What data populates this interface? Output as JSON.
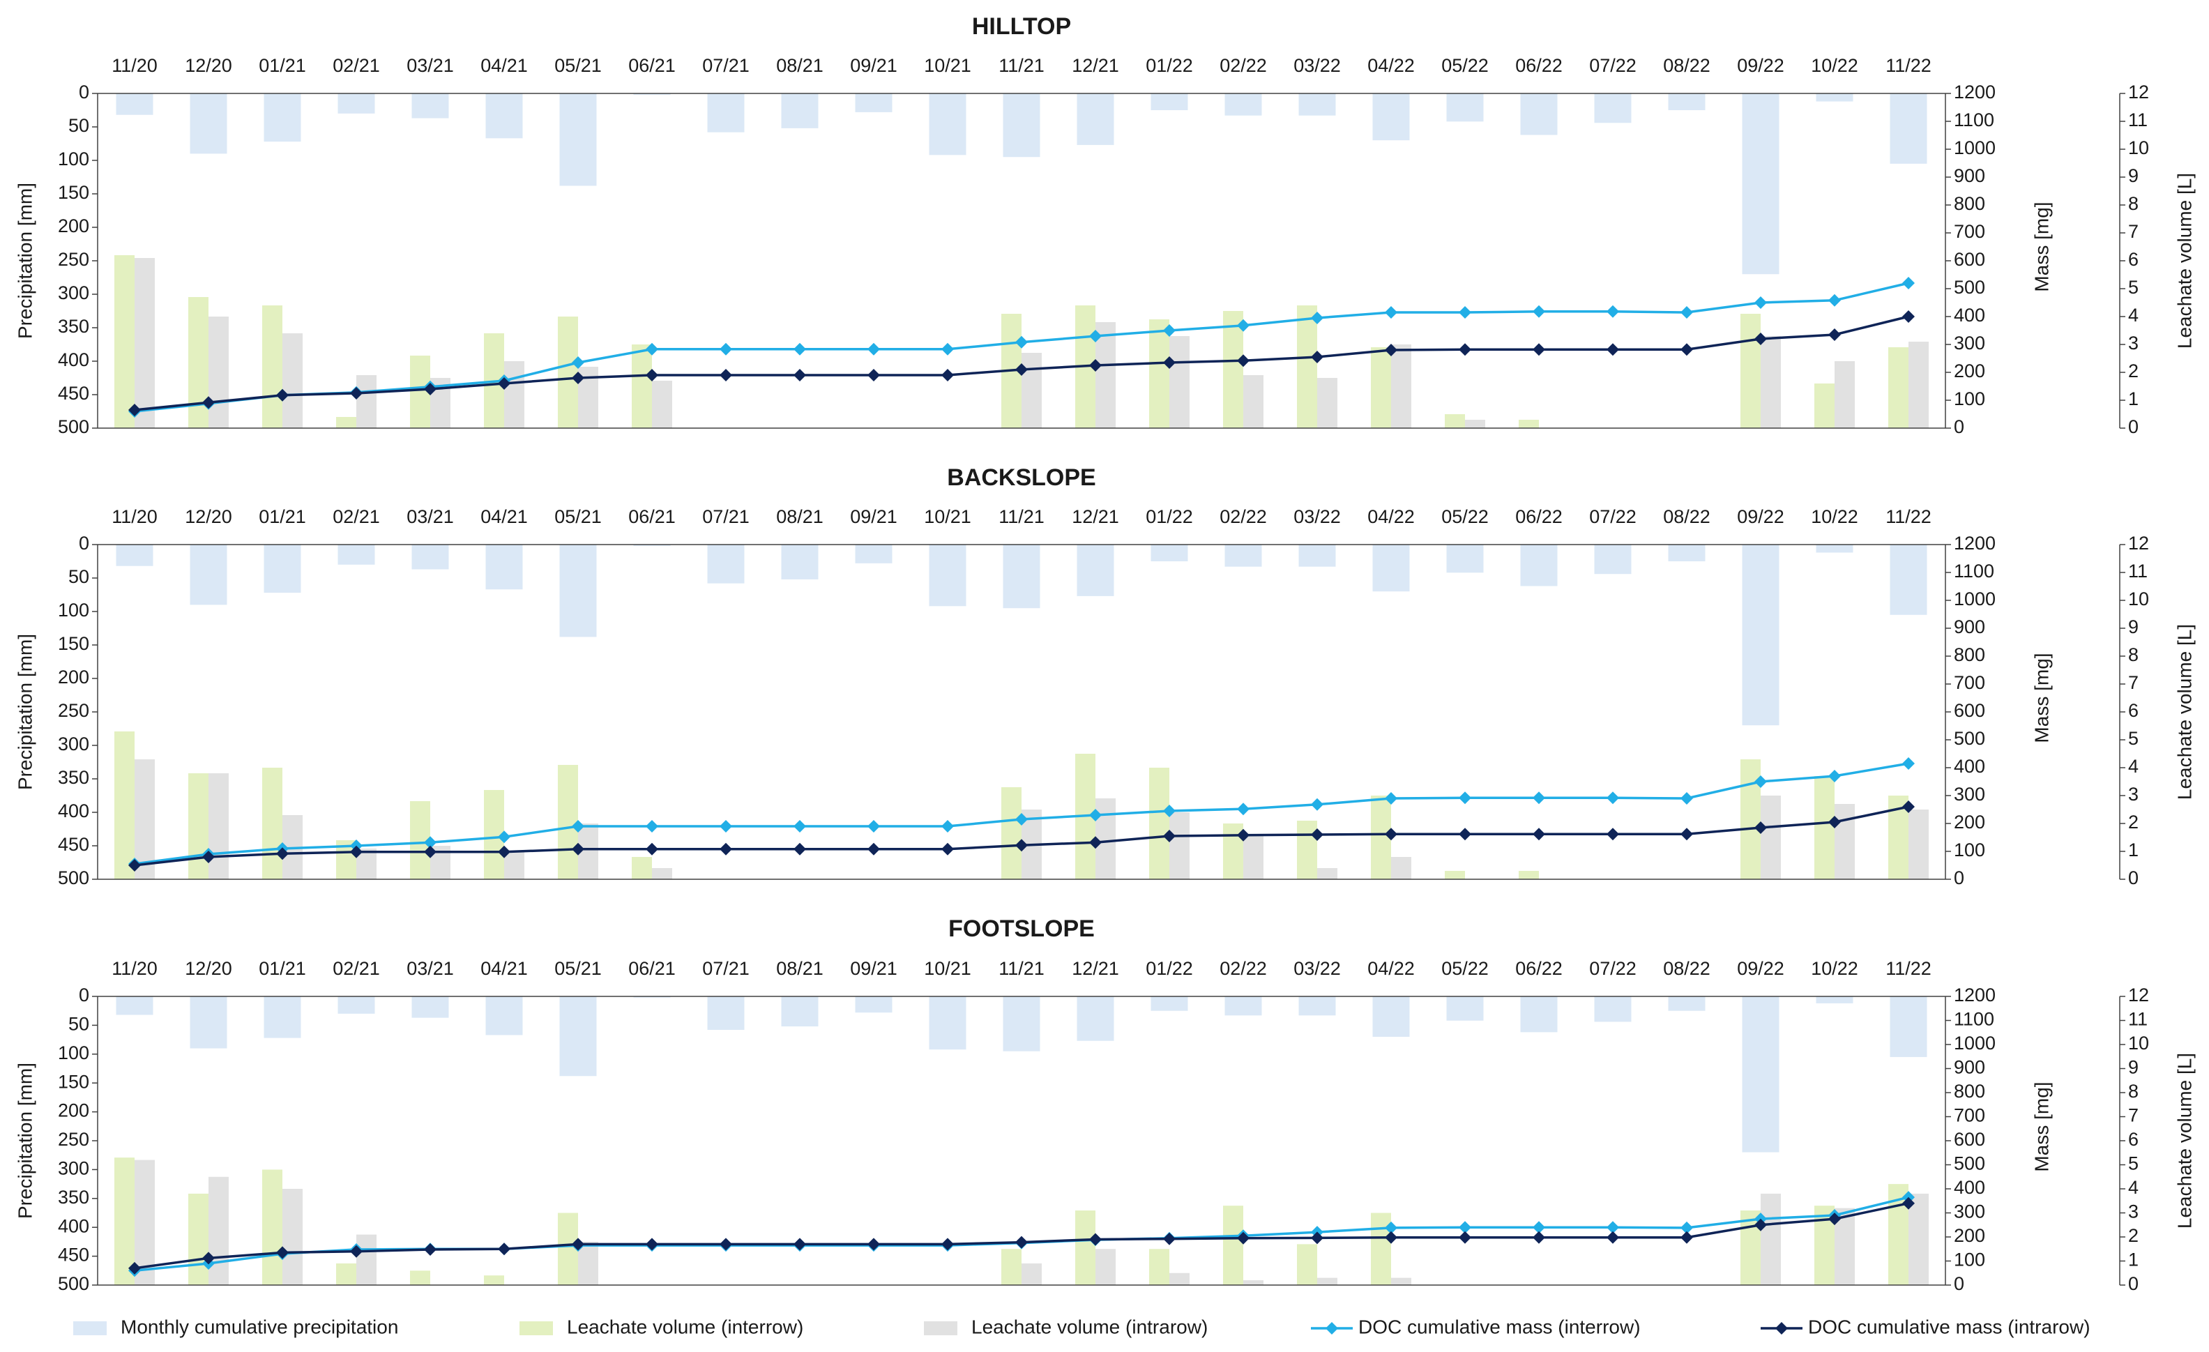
{
  "chart_data": [
    {
      "type": "combo",
      "title": "HILLTOP",
      "categories": [
        "11/20",
        "12/20",
        "01/21",
        "02/21",
        "03/21",
        "04/21",
        "05/21",
        "06/21",
        "07/21",
        "08/21",
        "09/21",
        "10/21",
        "11/21",
        "12/21",
        "01/22",
        "02/22",
        "03/22",
        "04/22",
        "05/22",
        "06/22",
        "07/22",
        "08/22",
        "09/22",
        "10/22",
        "11/22"
      ],
      "ylabel_left": "Precipitation [mm]",
      "ylabel_mass": "Mass [mg]",
      "ylabel_volume": "Leachate volume [L]",
      "ylim_precip": [
        0,
        500
      ],
      "ylim_mass": [
        0,
        1200
      ],
      "ylim_volume": [
        0,
        12
      ],
      "precip_ticks": [
        "0",
        "50",
        "100",
        "150",
        "200",
        "250",
        "300",
        "350",
        "400",
        "450",
        "500"
      ],
      "mass_ticks": [
        "0",
        "100",
        "200",
        "300",
        "400",
        "500",
        "600",
        "700",
        "800",
        "900",
        "1000",
        "1100",
        "1200"
      ],
      "volume_ticks": [
        "0",
        "1",
        "2",
        "3",
        "4",
        "5",
        "6",
        "7",
        "8",
        "9",
        "10",
        "11",
        "12"
      ],
      "series": [
        {
          "name": "Monthly cumulative precipitation",
          "axis": "precip",
          "values": [
            32,
            90,
            72,
            30,
            37,
            67,
            138,
            2,
            58,
            52,
            28,
            92,
            95,
            77,
            25,
            33,
            33,
            70,
            42,
            62,
            44,
            25,
            270,
            12,
            105
          ]
        },
        {
          "name": "Leachate volume (interrow)",
          "axis": "volume",
          "values": [
            6.2,
            4.7,
            4.4,
            0.4,
            2.6,
            3.4,
            4.0,
            3.0,
            0,
            0,
            0,
            0,
            4.1,
            4.4,
            3.9,
            4.2,
            4.4,
            2.9,
            0.5,
            0.3,
            0,
            0,
            4.1,
            1.6,
            2.9
          ]
        },
        {
          "name": "Leachate volume (intrarow)",
          "axis": "volume",
          "values": [
            6.1,
            4.0,
            3.4,
            1.9,
            1.8,
            2.4,
            2.2,
            1.7,
            0,
            0,
            0,
            0,
            2.7,
            3.8,
            3.3,
            1.9,
            1.8,
            3.0,
            0.3,
            0,
            0,
            0,
            3.3,
            2.4,
            3.1
          ]
        },
        {
          "name": "DOC cumulative mass (interrow)",
          "axis": "mass",
          "values": [
            60,
            88,
            118,
            128,
            148,
            170,
            235,
            283,
            283,
            283,
            283,
            283,
            308,
            330,
            350,
            368,
            395,
            415,
            415,
            418,
            418,
            415,
            450,
            458,
            520
          ]
        },
        {
          "name": "DOC cumulative mass (intrarow)",
          "axis": "mass",
          "values": [
            65,
            92,
            118,
            125,
            140,
            160,
            180,
            190,
            190,
            190,
            190,
            190,
            210,
            225,
            235,
            242,
            255,
            280,
            282,
            282,
            282,
            282,
            320,
            335,
            400
          ]
        }
      ]
    },
    {
      "type": "combo",
      "title": "BACKSLOPE",
      "categories": [
        "11/20",
        "12/20",
        "01/21",
        "02/21",
        "03/21",
        "04/21",
        "05/21",
        "06/21",
        "07/21",
        "08/21",
        "09/21",
        "10/21",
        "11/21",
        "12/21",
        "01/22",
        "02/22",
        "03/22",
        "04/22",
        "05/22",
        "06/22",
        "07/22",
        "08/22",
        "09/22",
        "10/22",
        "11/22"
      ],
      "ylabel_left": "Precipitation [mm]",
      "ylabel_mass": "Mass [mg]",
      "ylabel_volume": "Leachate volume [L]",
      "ylim_precip": [
        0,
        500
      ],
      "ylim_mass": [
        0,
        1200
      ],
      "ylim_volume": [
        0,
        12
      ],
      "precip_ticks": [
        "0",
        "50",
        "100",
        "150",
        "200",
        "250",
        "300",
        "350",
        "400",
        "450",
        "500"
      ],
      "mass_ticks": [
        "0",
        "100",
        "200",
        "300",
        "400",
        "500",
        "600",
        "700",
        "800",
        "900",
        "1000",
        "1100",
        "1200"
      ],
      "volume_ticks": [
        "0",
        "1",
        "2",
        "3",
        "4",
        "5",
        "6",
        "7",
        "8",
        "9",
        "10",
        "11",
        "12"
      ],
      "series": [
        {
          "name": "Monthly cumulative precipitation",
          "axis": "precip",
          "values": [
            32,
            90,
            72,
            30,
            37,
            67,
            138,
            2,
            58,
            52,
            28,
            92,
            95,
            77,
            25,
            33,
            33,
            70,
            42,
            62,
            44,
            25,
            270,
            12,
            105
          ]
        },
        {
          "name": "Leachate volume (interrow)",
          "axis": "volume",
          "values": [
            5.3,
            3.8,
            4.0,
            1.4,
            2.8,
            3.2,
            4.1,
            0.8,
            0,
            0,
            0,
            0,
            3.3,
            4.5,
            4.0,
            2.0,
            2.1,
            3.0,
            0.3,
            0.3,
            0,
            0,
            4.3,
            3.7,
            3.0
          ]
        },
        {
          "name": "Leachate volume (intrarow)",
          "axis": "volume",
          "values": [
            4.3,
            3.8,
            2.3,
            1.1,
            1.2,
            1.0,
            2.0,
            0.4,
            0,
            0,
            0,
            0,
            2.5,
            2.9,
            2.4,
            1.6,
            0.4,
            0.8,
            0,
            0,
            0,
            0,
            3.0,
            2.7,
            2.5
          ]
        },
        {
          "name": "DOC cumulative mass (interrow)",
          "axis": "mass",
          "values": [
            55,
            90,
            110,
            120,
            132,
            152,
            190,
            190,
            190,
            190,
            190,
            190,
            215,
            230,
            245,
            252,
            268,
            290,
            292,
            292,
            292,
            290,
            350,
            370,
            415
          ]
        },
        {
          "name": "DOC cumulative mass (intrarow)",
          "axis": "mass",
          "values": [
            50,
            80,
            92,
            98,
            98,
            98,
            108,
            108,
            108,
            108,
            108,
            108,
            122,
            132,
            155,
            158,
            160,
            162,
            162,
            162,
            162,
            162,
            185,
            205,
            260
          ]
        }
      ]
    },
    {
      "type": "combo",
      "title": "FOOTSLOPE",
      "categories": [
        "11/20",
        "12/20",
        "01/21",
        "02/21",
        "03/21",
        "04/21",
        "05/21",
        "06/21",
        "07/21",
        "08/21",
        "09/21",
        "10/21",
        "11/21",
        "12/21",
        "01/22",
        "02/22",
        "03/22",
        "04/22",
        "05/22",
        "06/22",
        "07/22",
        "08/22",
        "09/22",
        "10/22",
        "11/22"
      ],
      "ylabel_left": "Precipitation [mm]",
      "ylabel_mass": "Mass [mg]",
      "ylabel_volume": "Leachate volume [L]",
      "ylim_precip": [
        0,
        500
      ],
      "ylim_mass": [
        0,
        1200
      ],
      "ylim_volume": [
        0,
        12
      ],
      "precip_ticks": [
        "0",
        "50",
        "100",
        "150",
        "200",
        "250",
        "300",
        "350",
        "400",
        "450",
        "500"
      ],
      "mass_ticks": [
        "0",
        "100",
        "200",
        "300",
        "400",
        "500",
        "600",
        "700",
        "800",
        "900",
        "1000",
        "1100",
        "1200"
      ],
      "volume_ticks": [
        "0",
        "1",
        "2",
        "3",
        "4",
        "5",
        "6",
        "7",
        "8",
        "9",
        "10",
        "11",
        "12"
      ],
      "series": [
        {
          "name": "Monthly cumulative precipitation",
          "axis": "precip",
          "values": [
            32,
            90,
            72,
            30,
            37,
            67,
            138,
            2,
            58,
            52,
            28,
            92,
            95,
            77,
            25,
            33,
            33,
            70,
            42,
            62,
            44,
            25,
            270,
            12,
            105
          ]
        },
        {
          "name": "Leachate volume (interrow)",
          "axis": "volume",
          "values": [
            5.3,
            3.8,
            4.8,
            0.9,
            0.6,
            0.4,
            3.0,
            0,
            0,
            0,
            0,
            0,
            1.5,
            3.1,
            1.5,
            3.3,
            1.7,
            3.0,
            0,
            0,
            0,
            0,
            3.1,
            3.3,
            4.2
          ]
        },
        {
          "name": "Leachate volume (intrarow)",
          "axis": "volume",
          "values": [
            5.2,
            4.5,
            4.0,
            2.1,
            0,
            0,
            1.8,
            0,
            0,
            0,
            0,
            0,
            0.9,
            1.5,
            0.5,
            0.2,
            0.3,
            0.3,
            0,
            0,
            0,
            0,
            3.8,
            3.2,
            3.8
          ]
        },
        {
          "name": "DOC cumulative mass (interrow)",
          "axis": "mass",
          "values": [
            60,
            90,
            130,
            148,
            150,
            150,
            165,
            165,
            165,
            165,
            165,
            165,
            175,
            188,
            195,
            205,
            220,
            238,
            240,
            240,
            240,
            238,
            275,
            290,
            365
          ]
        },
        {
          "name": "DOC cumulative mass (intrarow)",
          "axis": "mass",
          "values": [
            70,
            112,
            135,
            140,
            148,
            150,
            170,
            170,
            170,
            170,
            170,
            170,
            178,
            190,
            192,
            195,
            196,
            198,
            198,
            198,
            198,
            198,
            250,
            275,
            340
          ]
        }
      ]
    }
  ],
  "legend": [
    {
      "label": "Monthly cumulative precipitation",
      "kind": "bar",
      "color": "#dbe8f6"
    },
    {
      "label": "Leachate volume (interrow)",
      "kind": "bar",
      "color": "#e3f0c0"
    },
    {
      "label": "Leachate volume (intrarow)",
      "kind": "bar",
      "color": "#e1e1e1"
    },
    {
      "label": "DOC cumulative mass (interrow)",
      "kind": "line",
      "color": "#21aee6"
    },
    {
      "label": "DOC cumulative mass (intrarow)",
      "kind": "line",
      "color": "#0f2457"
    }
  ]
}
